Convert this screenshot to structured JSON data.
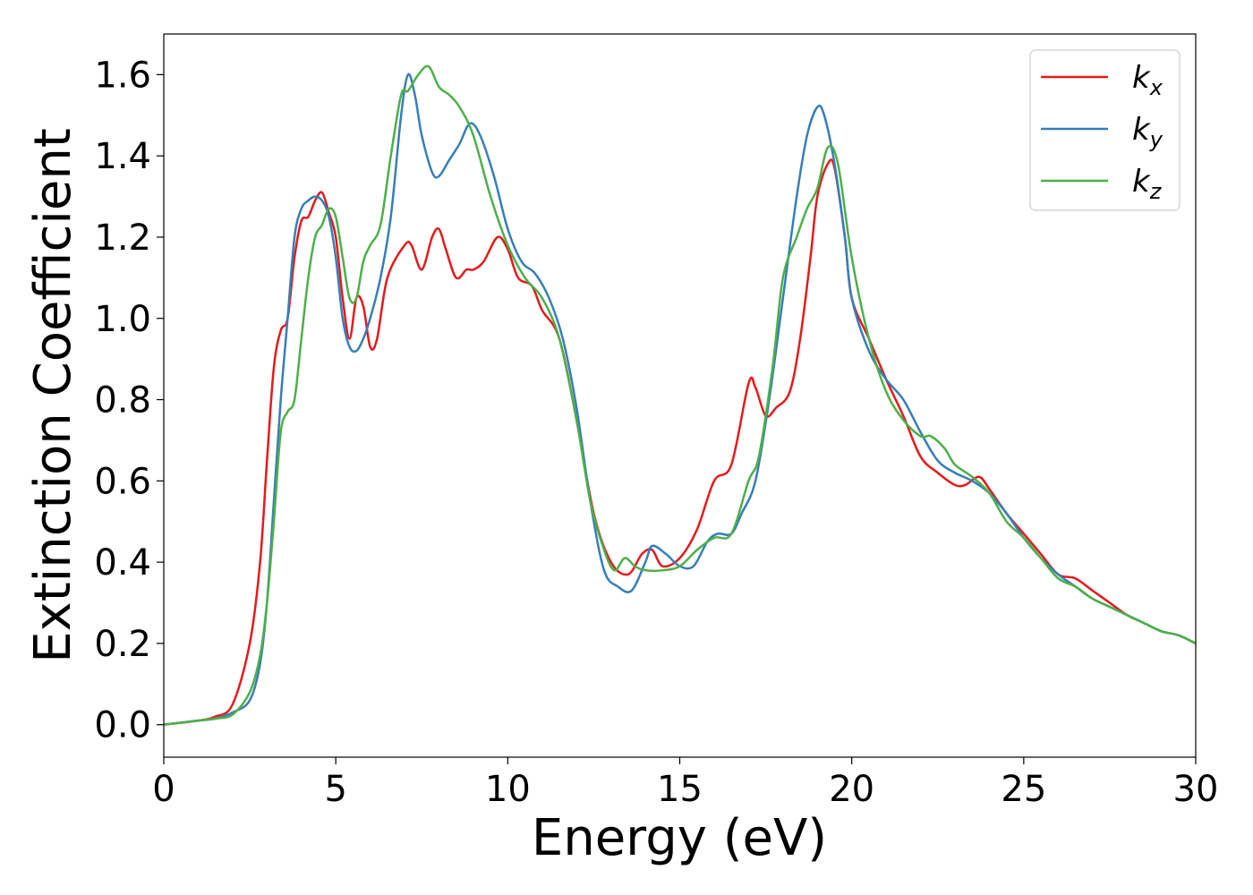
{
  "chart_data": {
    "type": "line",
    "xlabel": "Energy (eV)",
    "ylabel": "Extinction Coefficient",
    "xlim": [
      0,
      30
    ],
    "ylim": [
      -0.08,
      1.7
    ],
    "x_ticks": [
      "0",
      "5",
      "10",
      "15",
      "20",
      "25",
      "30"
    ],
    "y_ticks": [
      "0.0",
      "0.2",
      "0.4",
      "0.6",
      "0.8",
      "1.0",
      "1.2",
      "1.4",
      "1.6"
    ],
    "grid": false,
    "legend_position": "top-right",
    "series": [
      {
        "name": "k_x",
        "label_base": "k",
        "label_sub": "x",
        "color": "#e41a1c",
        "x": [
          0,
          1,
          1.5,
          2,
          2.5,
          2.8,
          3.0,
          3.2,
          3.4,
          3.6,
          3.8,
          4.0,
          4.2,
          4.4,
          4.6,
          4.8,
          5.0,
          5.2,
          5.4,
          5.6,
          5.8,
          6.0,
          6.2,
          6.5,
          7.0,
          7.2,
          7.5,
          7.8,
          8.0,
          8.2,
          8.5,
          8.8,
          9.0,
          9.3,
          9.7,
          10.0,
          10.3,
          10.7,
          11.0,
          11.5,
          12.0,
          12.5,
          13.0,
          13.5,
          13.9,
          14.2,
          14.5,
          15.0,
          15.5,
          16.0,
          16.5,
          17.0,
          17.2,
          17.5,
          17.8,
          18.2,
          18.5,
          18.8,
          19.0,
          19.3,
          19.5,
          19.8,
          20.0,
          20.5,
          21.0,
          21.5,
          22.0,
          22.5,
          23.0,
          23.3,
          23.7,
          24.0,
          24.5,
          25.0,
          25.5,
          26.0,
          26.5,
          27.0,
          27.5,
          28.0,
          28.5,
          29.0,
          29.5,
          30.0
        ],
        "y": [
          0.0,
          0.01,
          0.02,
          0.05,
          0.2,
          0.4,
          0.65,
          0.88,
          0.97,
          1.0,
          1.15,
          1.24,
          1.25,
          1.29,
          1.31,
          1.26,
          1.2,
          1.05,
          0.95,
          1.05,
          1.03,
          0.93,
          0.95,
          1.1,
          1.18,
          1.18,
          1.12,
          1.2,
          1.22,
          1.17,
          1.1,
          1.12,
          1.12,
          1.14,
          1.2,
          1.17,
          1.1,
          1.08,
          1.02,
          0.95,
          0.75,
          0.52,
          0.4,
          0.37,
          0.42,
          0.43,
          0.39,
          0.41,
          0.48,
          0.6,
          0.64,
          0.84,
          0.83,
          0.76,
          0.78,
          0.82,
          0.95,
          1.15,
          1.3,
          1.38,
          1.37,
          1.2,
          1.05,
          0.95,
          0.85,
          0.76,
          0.66,
          0.62,
          0.59,
          0.59,
          0.61,
          0.58,
          0.52,
          0.47,
          0.42,
          0.37,
          0.36,
          0.33,
          0.3,
          0.27,
          0.25,
          0.23,
          0.22,
          0.2
        ]
      },
      {
        "name": "k_y",
        "label_base": "k",
        "label_sub": "y",
        "color": "#377eb8",
        "x": [
          0,
          1,
          1.5,
          2,
          2.5,
          2.8,
          3.0,
          3.2,
          3.4,
          3.6,
          3.8,
          4.0,
          4.2,
          4.4,
          4.6,
          4.8,
          5.0,
          5.2,
          5.4,
          5.6,
          5.8,
          6.0,
          6.3,
          6.6,
          6.9,
          7.1,
          7.3,
          7.5,
          7.8,
          8.0,
          8.3,
          8.6,
          8.9,
          9.2,
          9.6,
          10.0,
          10.4,
          10.8,
          11.2,
          11.6,
          12.0,
          12.4,
          12.8,
          13.2,
          13.6,
          14.0,
          14.2,
          14.6,
          15.0,
          15.4,
          15.8,
          16.1,
          16.5,
          16.8,
          17.2,
          17.6,
          18.0,
          18.4,
          18.7,
          19.0,
          19.2,
          19.5,
          19.8,
          20.0,
          20.5,
          21.0,
          21.5,
          22.0,
          22.5,
          23.0,
          23.5,
          24.0,
          24.5,
          25.0,
          25.5,
          26.0,
          26.5,
          27.0,
          27.5,
          28.0,
          28.5,
          29.0,
          29.5,
          30.0
        ],
        "y": [
          0.0,
          0.01,
          0.015,
          0.03,
          0.06,
          0.15,
          0.3,
          0.55,
          0.8,
          1.0,
          1.2,
          1.27,
          1.29,
          1.3,
          1.29,
          1.25,
          1.15,
          1.0,
          0.93,
          0.92,
          0.95,
          1.0,
          1.1,
          1.25,
          1.5,
          1.6,
          1.55,
          1.45,
          1.36,
          1.35,
          1.39,
          1.43,
          1.48,
          1.45,
          1.35,
          1.22,
          1.14,
          1.11,
          1.05,
          0.95,
          0.78,
          0.55,
          0.38,
          0.34,
          0.33,
          0.4,
          0.44,
          0.42,
          0.39,
          0.39,
          0.45,
          0.47,
          0.47,
          0.52,
          0.6,
          0.8,
          1.05,
          1.3,
          1.45,
          1.52,
          1.5,
          1.38,
          1.2,
          1.05,
          0.92,
          0.85,
          0.8,
          0.72,
          0.65,
          0.62,
          0.6,
          0.57,
          0.52,
          0.46,
          0.41,
          0.37,
          0.34,
          0.31,
          0.29,
          0.27,
          0.25,
          0.23,
          0.22,
          0.2
        ]
      },
      {
        "name": "k_z",
        "label_base": "k",
        "label_sub": "z",
        "color": "#4daf4a",
        "x": [
          0,
          1,
          1.5,
          2,
          2.5,
          2.8,
          3.0,
          3.2,
          3.4,
          3.6,
          3.8,
          4.0,
          4.2,
          4.4,
          4.6,
          4.8,
          5.0,
          5.2,
          5.4,
          5.6,
          5.8,
          6.0,
          6.3,
          6.6,
          6.9,
          7.1,
          7.4,
          7.7,
          8.0,
          8.3,
          8.6,
          9.0,
          9.5,
          10.0,
          10.5,
          11.0,
          11.5,
          12.0,
          12.4,
          12.8,
          13.1,
          13.4,
          13.7,
          14.0,
          14.5,
          15.0,
          15.5,
          16.0,
          16.5,
          17.0,
          17.3,
          17.7,
          18.0,
          18.4,
          18.7,
          19.0,
          19.3,
          19.6,
          20.0,
          20.5,
          21.0,
          21.5,
          22.0,
          22.3,
          22.7,
          23.0,
          23.5,
          24.0,
          24.5,
          25.0,
          25.5,
          26.0,
          26.5,
          27.0,
          27.5,
          28.0,
          28.5,
          29.0,
          29.5,
          30.0
        ],
        "y": [
          0.0,
          0.01,
          0.015,
          0.025,
          0.08,
          0.17,
          0.3,
          0.5,
          0.72,
          0.77,
          0.8,
          0.95,
          1.1,
          1.2,
          1.23,
          1.27,
          1.25,
          1.15,
          1.05,
          1.05,
          1.14,
          1.18,
          1.23,
          1.4,
          1.55,
          1.56,
          1.6,
          1.62,
          1.57,
          1.55,
          1.52,
          1.45,
          1.3,
          1.18,
          1.1,
          1.05,
          0.95,
          0.75,
          0.55,
          0.43,
          0.38,
          0.41,
          0.39,
          0.38,
          0.38,
          0.39,
          0.43,
          0.46,
          0.47,
          0.6,
          0.66,
          0.88,
          1.1,
          1.2,
          1.27,
          1.32,
          1.42,
          1.38,
          1.15,
          0.95,
          0.82,
          0.75,
          0.71,
          0.71,
          0.68,
          0.64,
          0.61,
          0.57,
          0.5,
          0.46,
          0.41,
          0.36,
          0.34,
          0.31,
          0.29,
          0.27,
          0.25,
          0.23,
          0.22,
          0.2
        ]
      }
    ]
  }
}
